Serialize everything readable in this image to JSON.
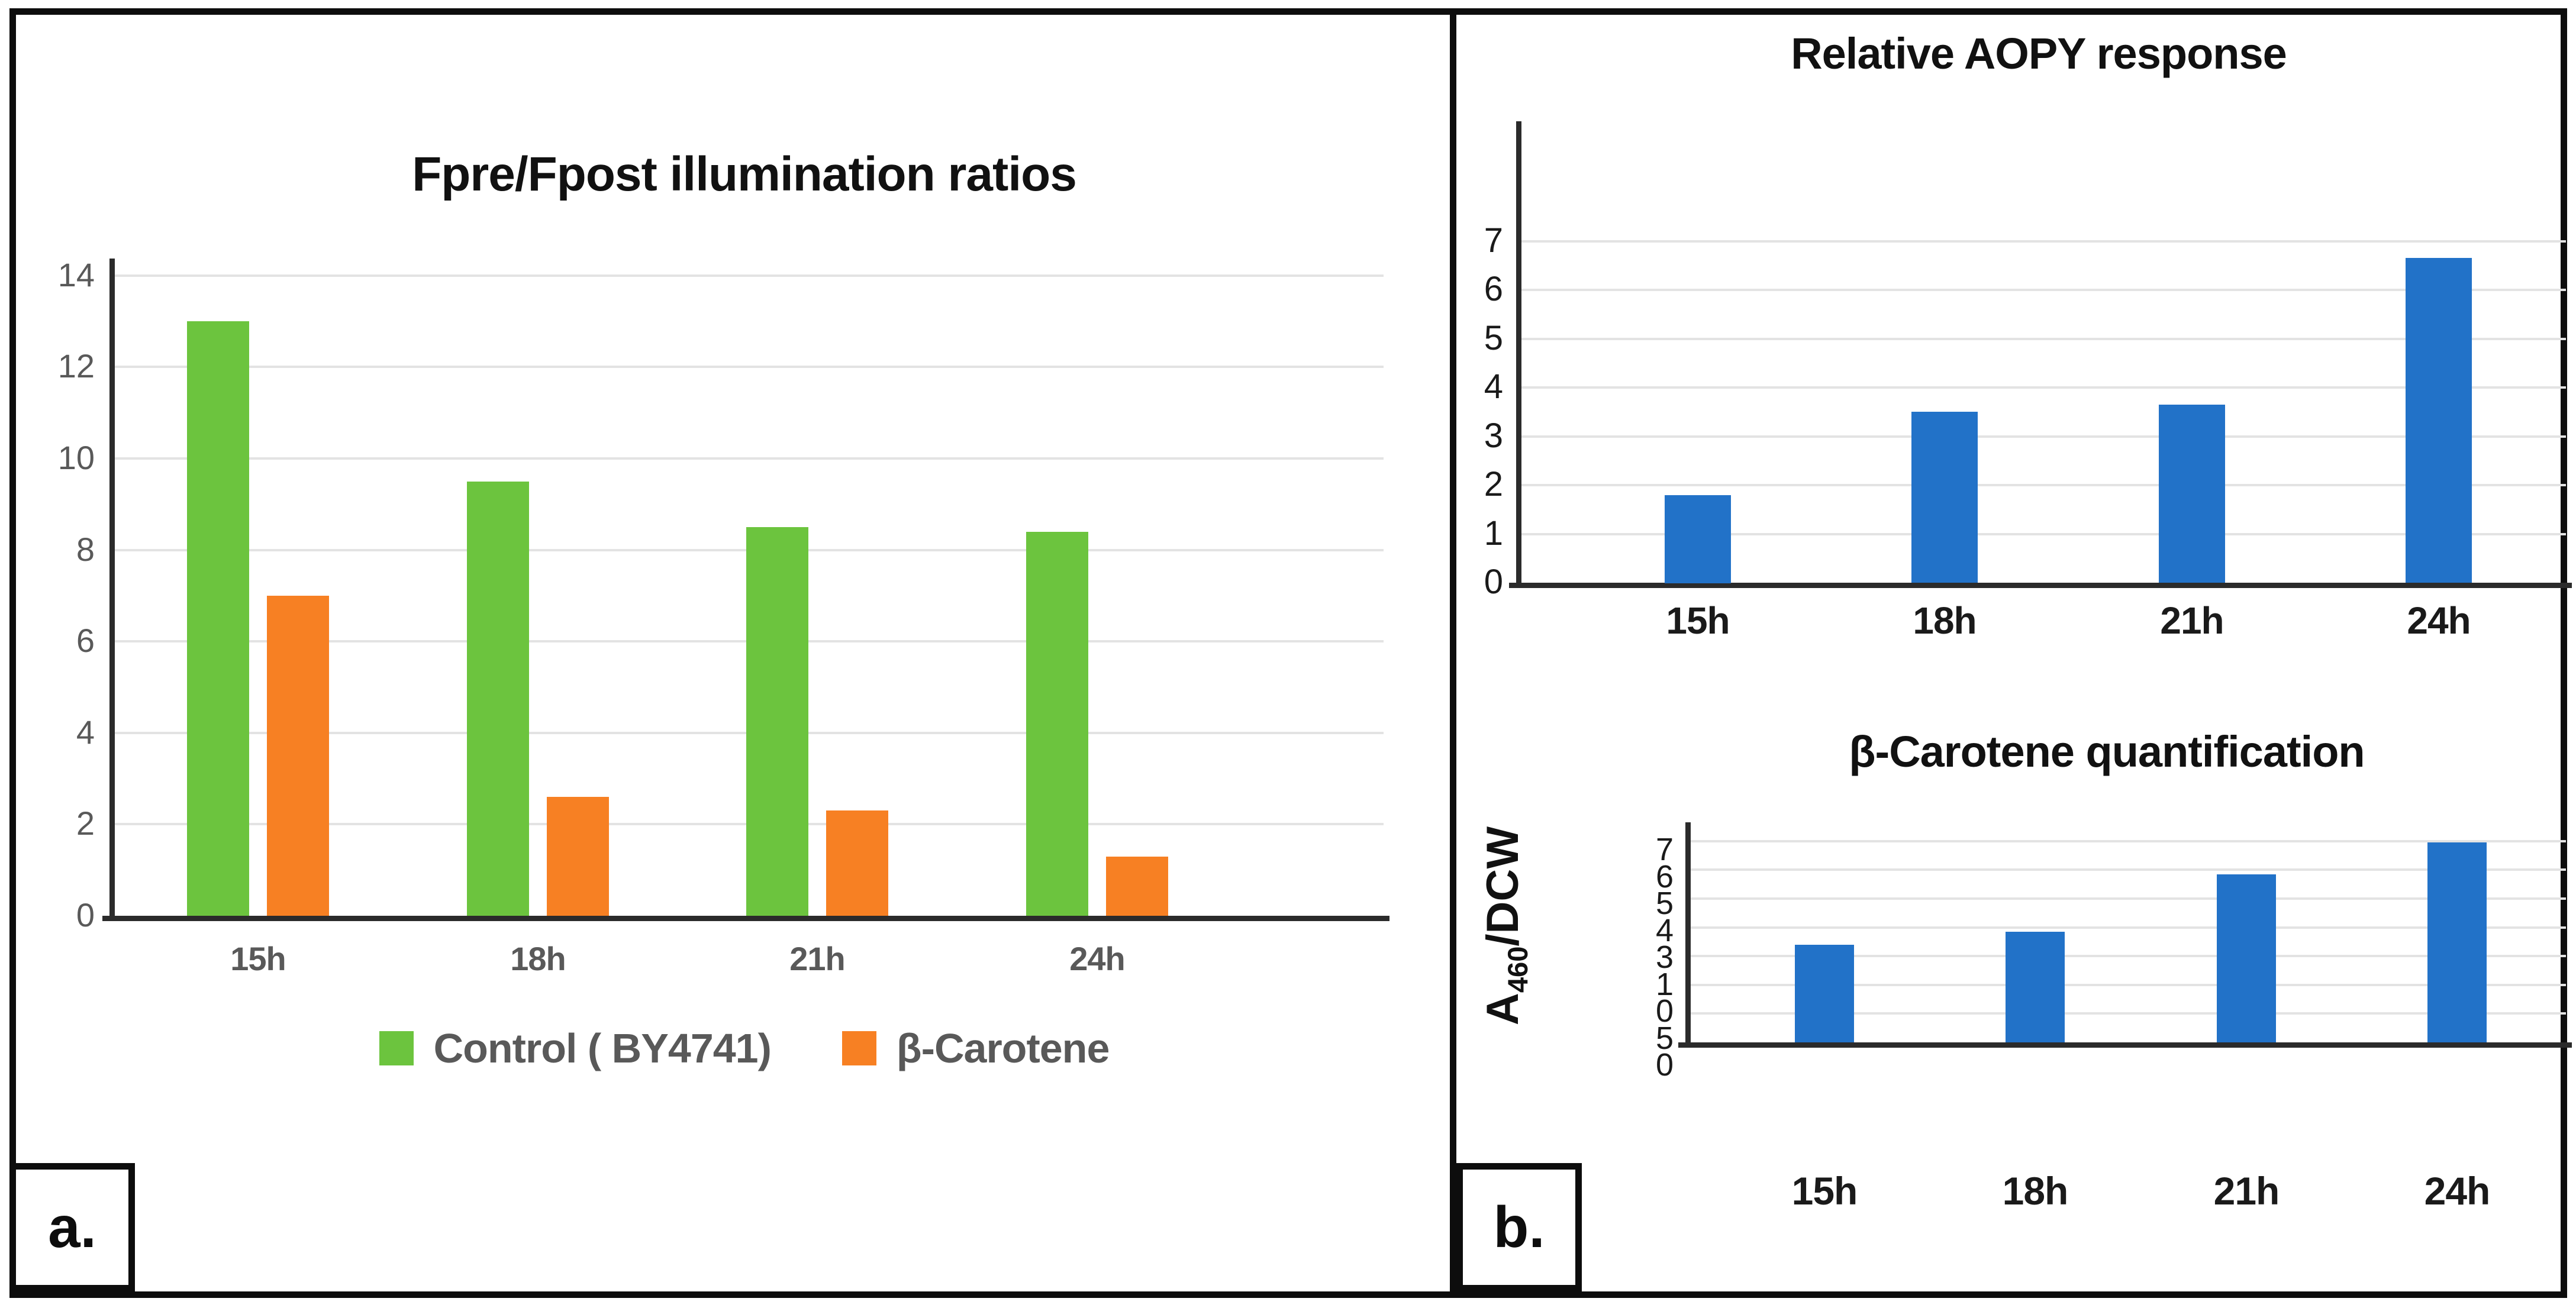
{
  "figure": {
    "panel_a_label": "a.",
    "panel_b_label": "b."
  },
  "colors": {
    "green": "#6CC43E",
    "orange": "#F78023",
    "blue": "#2272C8",
    "axis_text_gray": "#595959",
    "tick_text_black": "#1a1a1a",
    "axis_line": "#2b2b2b",
    "gridline": "#e3e3e3"
  },
  "chart_data": [
    {
      "id": "fpre_fpost",
      "type": "bar",
      "title": "Fpre/Fpost illumination ratios",
      "categories": [
        "15h",
        "18h",
        "21h",
        "24h"
      ],
      "series": [
        {
          "name": "Control ( BY4741)",
          "color_key": "green",
          "values": [
            13,
            9.5,
            8.5,
            8.4
          ]
        },
        {
          "name": "β-Carotene",
          "color_key": "orange",
          "values": [
            7,
            2.6,
            2.3,
            1.3
          ]
        }
      ],
      "xlabel": "",
      "ylabel": "",
      "ylim": [
        0,
        14
      ],
      "yticks": [
        0,
        2,
        4,
        6,
        8,
        10,
        12,
        14
      ],
      "grid": true,
      "legend_position": "bottom"
    },
    {
      "id": "relative_aopy",
      "type": "bar",
      "title": "Relative AOPY response",
      "categories": [
        "15h",
        "18h",
        "21h",
        "24h"
      ],
      "series": [
        {
          "name": "Relative AOPY",
          "color_key": "blue",
          "values": [
            1.8,
            3.5,
            3.65,
            6.65
          ]
        }
      ],
      "xlabel": "",
      "ylabel": "",
      "ylim": [
        0,
        7
      ],
      "yticks": [
        0,
        1,
        2,
        3,
        4,
        5,
        6,
        7
      ],
      "grid": true,
      "legend_position": "none"
    },
    {
      "id": "bcarotene_quantification",
      "type": "bar",
      "title": "β-Carotene quantification",
      "categories": [
        "15h",
        "18h",
        "21h",
        "24h"
      ],
      "series": [
        {
          "name": "β-Carotene A460/DCW",
          "color_key": "blue",
          "values": [
            3.4,
            3.85,
            5.85,
            6.95
          ]
        }
      ],
      "xlabel": "",
      "ylabel_base": "A",
      "ylabel_sub": "460",
      "ylabel_rest": "/DCW",
      "ylim": [
        0,
        7.5
      ],
      "gridline_values": [
        1,
        2,
        3,
        4,
        5,
        6,
        7
      ],
      "ytick_labels_as_shown": [
        "7",
        "6",
        "5",
        "4",
        "3",
        "1",
        "0",
        "5",
        "0"
      ],
      "grid": true,
      "legend_position": "none"
    }
  ]
}
